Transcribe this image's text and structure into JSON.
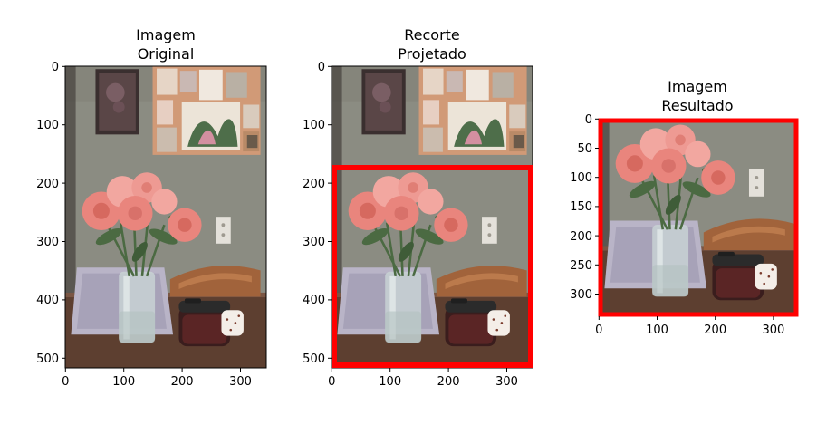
{
  "panels": [
    {
      "title_lines": [
        "Imagem",
        "Original"
      ],
      "x_ticks": [
        "0",
        "100",
        "200",
        "300"
      ],
      "y_ticks": [
        "0",
        "100",
        "200",
        "300",
        "400",
        "500"
      ],
      "image_size": [
        345,
        517
      ],
      "crop_box": null
    },
    {
      "title_lines": [
        "Recorte",
        "Projetado"
      ],
      "x_ticks": [
        "0",
        "100",
        "200",
        "300"
      ],
      "y_ticks": [
        "0",
        "100",
        "200",
        "300",
        "400",
        "500"
      ],
      "image_size": [
        345,
        517
      ],
      "crop_box": {
        "x0": 0,
        "y0": 172,
        "x1": 342,
        "y1": 514,
        "color": "#ff0000"
      }
    },
    {
      "title_lines": [
        "Imagem",
        "Resultado"
      ],
      "x_ticks": [
        "0",
        "100",
        "200",
        "300"
      ],
      "y_ticks": [
        "0",
        "50",
        "100",
        "150",
        "200",
        "250",
        "300"
      ],
      "image_size": [
        342,
        342
      ],
      "crop_box": {
        "x0": 0,
        "y0": 0,
        "x1": 342,
        "y1": 342,
        "color": "#ff0000"
      }
    }
  ],
  "colors": {
    "wall": "#8b8c82",
    "table": "#5d3f30",
    "flower_pink": "#e9857d",
    "flower_light": "#f2a7a0",
    "leaf": "#4b6a42",
    "frame_border": "#d19a77",
    "laptop": "#b9b4c7",
    "chair": "#a1633b",
    "crop_red": "#ff0000"
  }
}
